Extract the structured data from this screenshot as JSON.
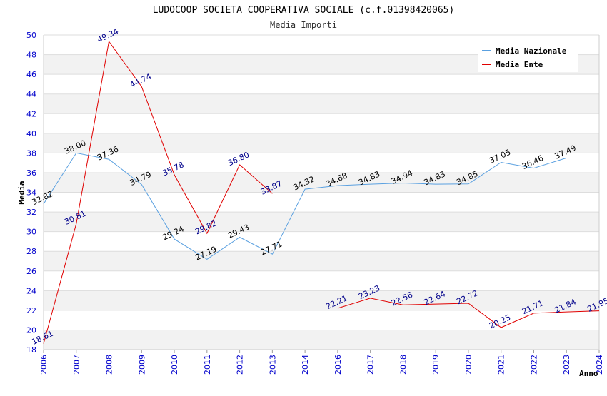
{
  "chart_data": {
    "type": "line",
    "title": "LUDOCOOP SOCIETA COOPERATIVA SOCIALE (c.f.01398420065)",
    "subtitle": "Media Importi",
    "xlabel": "Anno",
    "ylabel": "Media",
    "ylim": [
      18,
      50
    ],
    "yticks": [
      18,
      20,
      22,
      24,
      26,
      28,
      30,
      32,
      34,
      36,
      38,
      40,
      42,
      44,
      46,
      48,
      50
    ],
    "categories": [
      "2006",
      "2007",
      "2008",
      "2009",
      "2010",
      "2011",
      "2012",
      "2013",
      "2014",
      "2016",
      "2017",
      "2018",
      "2019",
      "2020",
      "2021",
      "2022",
      "2023",
      "2024"
    ],
    "legend_position": "top-right",
    "series": [
      {
        "name": "Media Nazionale",
        "color": "#5aa0e0",
        "values": [
          32.82,
          38.0,
          37.36,
          34.79,
          29.24,
          27.19,
          29.43,
          27.71,
          34.32,
          34.68,
          34.83,
          34.94,
          34.83,
          34.85,
          37.05,
          36.46,
          37.49,
          null
        ],
        "labels": [
          "32.82",
          "38.00",
          "37.36",
          "34.79",
          "29.24",
          "27.19",
          "29.43",
          "27.71",
          "34.32",
          "34.68",
          "34.83",
          "34.94",
          "34.83",
          "34.85",
          "37.05",
          "36.46",
          "37.49",
          null
        ]
      },
      {
        "name": "Media Ente",
        "color": "#e00000",
        "values": [
          18.61,
          30.81,
          49.34,
          44.74,
          35.78,
          29.82,
          36.8,
          33.87,
          null,
          22.21,
          23.23,
          22.56,
          22.64,
          22.72,
          20.25,
          21.71,
          21.84,
          21.95
        ],
        "labels": [
          "18.61",
          "30.81",
          "49.34",
          "44.74",
          "35.78",
          "29.82",
          "36.80",
          "33.87",
          null,
          "22.21",
          "23.23",
          "22.56",
          "22.64",
          "22.72",
          "20.25",
          "21.71",
          "21.84",
          "21.95"
        ]
      }
    ]
  }
}
